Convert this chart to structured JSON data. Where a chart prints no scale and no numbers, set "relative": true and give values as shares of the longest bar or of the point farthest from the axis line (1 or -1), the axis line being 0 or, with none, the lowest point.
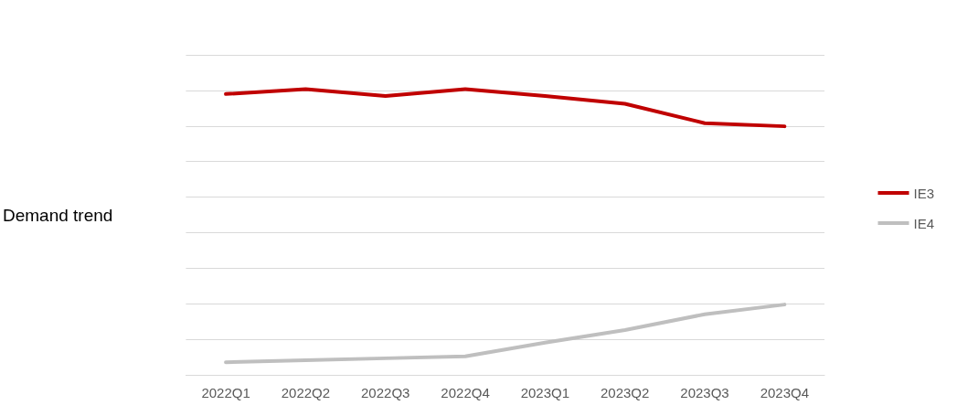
{
  "chart_data": {
    "type": "line",
    "ylabel": "Demand trend",
    "relative": true,
    "grid": "y",
    "legend": "right",
    "marker": "none",
    "line_style": "solid",
    "categories": [
      "2022Q1",
      "2022Q2",
      "2022Q3",
      "2022Q4",
      "2023Q1",
      "2023Q2",
      "2023Q3",
      "2023Q4"
    ],
    "series": [
      {
        "name": "IE3",
        "color": "#c00000",
        "values": [
          0.983,
          1,
          0.976,
          1,
          0.976,
          0.949,
          0.881,
          0.87
        ]
      },
      {
        "name": "IE4",
        "color": "#bfbfbf",
        "values": [
          0.044,
          0.051,
          0.058,
          0.065,
          0.113,
          0.157,
          0.212,
          0.246
        ]
      }
    ]
  }
}
